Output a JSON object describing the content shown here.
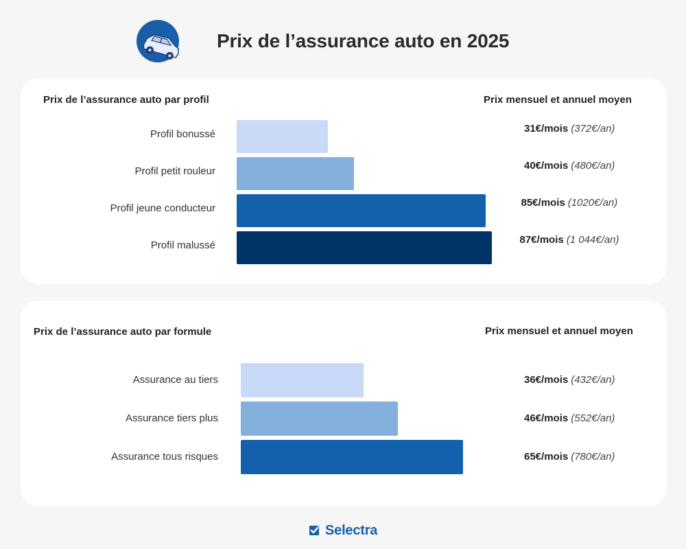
{
  "header": {
    "title": "Prix de l’assurance auto en 2025",
    "icon": "car-icon"
  },
  "colors": {
    "brand": "#1a5ea8",
    "bar_shades": [
      "#c9d9f8",
      "#84b0dc",
      "#1361ac",
      "#003366"
    ]
  },
  "chart_data": [
    {
      "type": "bar",
      "orientation": "horizontal",
      "title": "Prix de l’assurance auto par profil",
      "value_column_title": "Prix mensuel et annuel moyen",
      "categories": [
        "Profil bonussé",
        "Profil petit rouleur",
        "Profil jeune conducteur",
        "Profil malussé"
      ],
      "values": [
        31,
        40,
        85,
        87
      ],
      "value_labels": [
        "31€/mois",
        "40€/mois",
        "85€/mois",
        "87€/mois"
      ],
      "annual_labels": [
        "(372€/an)",
        "(480€/an)",
        "(1020€/an)",
        "(1 044€/an)"
      ],
      "bar_colors": [
        "#c9d9f8",
        "#84b0dc",
        "#1361ac",
        "#003366"
      ],
      "xlim": [
        0,
        87
      ],
      "grid": false,
      "legend": "none"
    },
    {
      "type": "bar",
      "orientation": "horizontal",
      "title": "Prix de l’assurance auto par formule",
      "value_column_title": "Prix mensuel et annuel moyen",
      "categories": [
        "Assurance au tiers",
        "Assurance tiers plus",
        "Assurance tous risques"
      ],
      "values": [
        36,
        46,
        65
      ],
      "value_labels": [
        "36€/mois",
        "46€/mois",
        "65€/mois"
      ],
      "annual_labels": [
        "(432€/an)",
        "(552€/an)",
        "(780€/an)"
      ],
      "bar_colors": [
        "#c9d9f8",
        "#84b0dc",
        "#1361ac"
      ],
      "xlim": [
        0,
        65
      ],
      "grid": false,
      "legend": "none"
    }
  ],
  "footer": {
    "logo_text": "Selectra",
    "logo_icon": "check-badge-icon"
  }
}
